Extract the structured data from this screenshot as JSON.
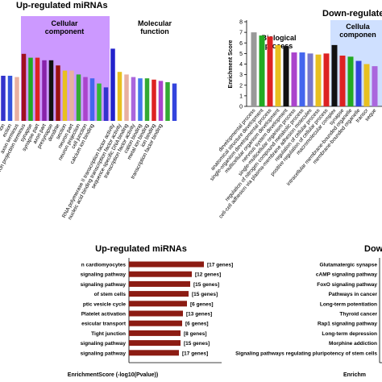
{
  "chart_data": [
    {
      "type": "bar",
      "title": "Up-regulated  miRNAs",
      "annotations": [
        "Cellular component",
        "Molecular function"
      ],
      "categories": [
        "ion",
        "ection",
        "axon terminus",
        "neuron projection terminus",
        "synapse",
        "synapse part",
        "axon part",
        "presynapse",
        "dendrite",
        "section",
        "neuron part",
        "neuron projection",
        "cell junction",
        "calcium ion binding",
        null,
        null,
        "RNA polymerase II transcription factor activity",
        "nucleic acid binding transcription factor activity",
        "sequence-specific DNA binding",
        "transcription factor activity",
        "cation binding",
        "metal ion binding",
        "ion binding",
        "transcription factor binding",
        null,
        null
      ],
      "values": [
        3.5,
        3.5,
        3.4,
        5.2,
        4.9,
        4.9,
        4.7,
        4.7,
        4.3,
        3.9,
        3.9,
        3.6,
        3.4,
        3.3,
        2.9,
        2.6,
        5.6,
        3.8,
        3.6,
        3.4,
        3.3,
        3.3,
        3.2,
        3.1,
        3.0,
        2.9
      ],
      "colors": [
        "#3333cc",
        "#3355dd",
        "#e8b0a0",
        "#a01020",
        "#22aa22",
        "#dd2222",
        "#8822aa",
        "#111111",
        "#991111",
        "#e8c020",
        "#e8b0a0",
        "#33aa33",
        "#aa44cc",
        "#4466ee",
        "#33bb33",
        "#3333cc",
        "#2222cc",
        "#e8c020",
        "#e8b0a0",
        "#aa66dd",
        "#4477ee",
        "#33aa33",
        "#dd2222",
        "#aa44cc",
        "#33aa33",
        "#3344dd"
      ],
      "ylim": [
        0,
        8
      ]
    },
    {
      "type": "bar",
      "title": "Down-regulate",
      "y_label": "Enrichment Score",
      "annotations": [
        "Biological process",
        "Cellula componen"
      ],
      "categories": [
        "developmental process",
        "anatomical structure development",
        "single-organism developmental process",
        "multicellular organism development",
        "nervous system development",
        "single-multicellular organism process",
        "regulation of nitrogen compound metabolic process",
        "cell-cell adhesion via plasma-membrane adhesion molecules",
        "regulation of cellular process",
        "positive regulation of cellular process",
        "macromolecular complex",
        "synapse",
        "intracellular membrane-bounded organelle",
        "membrane-bounded organelle",
        "transcr",
        "seque"
      ],
      "values": [
        7.0,
        6.7,
        6.6,
        5.8,
        5.7,
        5.1,
        5.1,
        5.0,
        4.9,
        5.0,
        5.8,
        4.8,
        4.7,
        4.3,
        4.0,
        3.8
      ],
      "colors": [
        "#999999",
        "#22aa22",
        "#dd2222",
        "#e8c020",
        "#111111",
        "#aa44cc",
        "#4466ee",
        "#7777cc",
        "#e8c020",
        "#dd2222",
        "#111111",
        "#dd2222",
        "#22aa22",
        "#3344dd",
        "#e8c020",
        "#aa66dd"
      ],
      "ylim": [
        0,
        8
      ],
      "yticks": [
        0,
        1,
        2,
        3,
        4,
        5,
        6,
        7,
        8
      ]
    },
    {
      "type": "hbar",
      "title": "Up-regulated miRNAs",
      "x_label": "EnrichmentScore (-log10(Pvalue))",
      "categories": [
        "n cardiomyocytes",
        "signaling pathway",
        "signaling pathway",
        "of stem cells",
        "ptic vesicle cycle",
        "Platelet activation",
        "esicular transport",
        "Tight junction",
        "signaling pathway",
        "signaling pathway"
      ],
      "values": [
        9.3,
        7.8,
        7.6,
        7.4,
        7.2,
        6.7,
        6.6,
        6.4,
        6.4,
        6.2
      ],
      "value_labels": [
        "[17 genes]",
        "[12 genes]",
        "[15 genes]",
        "[15 genes]",
        "[6 genes]",
        "[13 genes]",
        "[6 genes]",
        "[8 genes]",
        "[15 genes]",
        "[17 genes]"
      ],
      "color": "#8c1c13",
      "xlim": [
        0,
        10
      ]
    },
    {
      "type": "hbar",
      "title": "Dow",
      "x_label": "Enrichm",
      "categories": [
        "Glutamatergic synapse",
        "cAMP signaling pathway",
        "FoxO signaling pathway",
        "Pathways in cancer",
        "Long-term potentiation",
        "Thyroid cancer",
        "Rap1 signaling pathway",
        "Long-term depression",
        "Morphine addiction",
        "Signaling pathways regulating pluripotency of stem cells"
      ]
    }
  ]
}
